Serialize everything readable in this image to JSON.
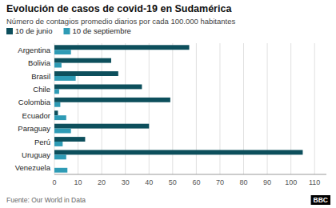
{
  "chart_data": {
    "type": "bar",
    "orientation": "horizontal",
    "title": "Evolución de casos de covid-19 en Sudamérica",
    "subtitle": "Número de contagios promedio diarios por cada 100.000 habitantes",
    "categories": [
      "Argentina",
      "Bolivia",
      "Brasil",
      "Chile",
      "Colombia",
      "Ecuador",
      "Paraguay",
      "Perú",
      "Uruguay",
      "Venezuela"
    ],
    "series": [
      {
        "name": "10 de junio",
        "color": "#0d4f5c",
        "values": [
          57,
          24,
          27,
          37,
          49,
          1.5,
          40,
          13,
          105,
          0
        ]
      },
      {
        "name": "10 de septiembre",
        "color": "#2e9bb5",
        "values": [
          7,
          3,
          9,
          2,
          2.5,
          5,
          7,
          3.5,
          5,
          5.5
        ]
      }
    ],
    "xlim": [
      0,
      115
    ],
    "xticks": [
      0,
      10,
      20,
      30,
      40,
      50,
      60,
      70,
      80,
      90,
      100,
      110
    ],
    "grid": true,
    "legend": "upper left",
    "annotations": [
      "Fuente: Our World in Data",
      "BBC"
    ]
  }
}
